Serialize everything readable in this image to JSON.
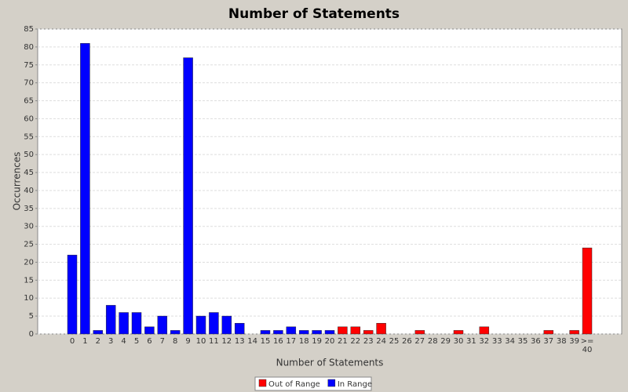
{
  "chart_data": {
    "type": "bar",
    "title": "Number of Statements",
    "x_label": "Number of Statements",
    "y_label": "Occurrences",
    "categories": [
      "0",
      "1",
      "2",
      "3",
      "4",
      "5",
      "6",
      "7",
      "8",
      "9",
      "10",
      "11",
      "12",
      "13",
      "14",
      "15",
      "16",
      "17",
      "18",
      "19",
      "20",
      "21",
      "22",
      "23",
      "24",
      "25",
      "26",
      "27",
      "28",
      "29",
      "30",
      "31",
      "32",
      "33",
      "34",
      "35",
      "36",
      "37",
      "38",
      "39",
      ">= 40"
    ],
    "series": [
      {
        "name": "Out of Range",
        "color": "#ff0000",
        "values": [
          null,
          null,
          null,
          null,
          null,
          null,
          null,
          null,
          null,
          null,
          null,
          null,
          null,
          null,
          null,
          null,
          null,
          null,
          null,
          null,
          null,
          2,
          2,
          1,
          3,
          0,
          0,
          1,
          0,
          0,
          1,
          0,
          2,
          0,
          0,
          0,
          0,
          1,
          0,
          1,
          24
        ]
      },
      {
        "name": "In Range",
        "color": "#0000ff",
        "values": [
          22,
          81,
          1,
          8,
          6,
          6,
          2,
          5,
          1,
          77,
          5,
          6,
          5,
          3,
          0,
          1,
          1,
          2,
          1,
          1,
          1,
          null,
          null,
          null,
          null,
          null,
          null,
          null,
          null,
          null,
          null,
          null,
          null,
          null,
          null,
          null,
          null,
          null,
          null,
          null,
          null
        ]
      }
    ],
    "ylim": [
      0,
      85
    ],
    "yticks": [
      0,
      5,
      10,
      15,
      20,
      25,
      30,
      35,
      40,
      45,
      50,
      55,
      60,
      65,
      70,
      75,
      80,
      85
    ],
    "grid": true
  }
}
